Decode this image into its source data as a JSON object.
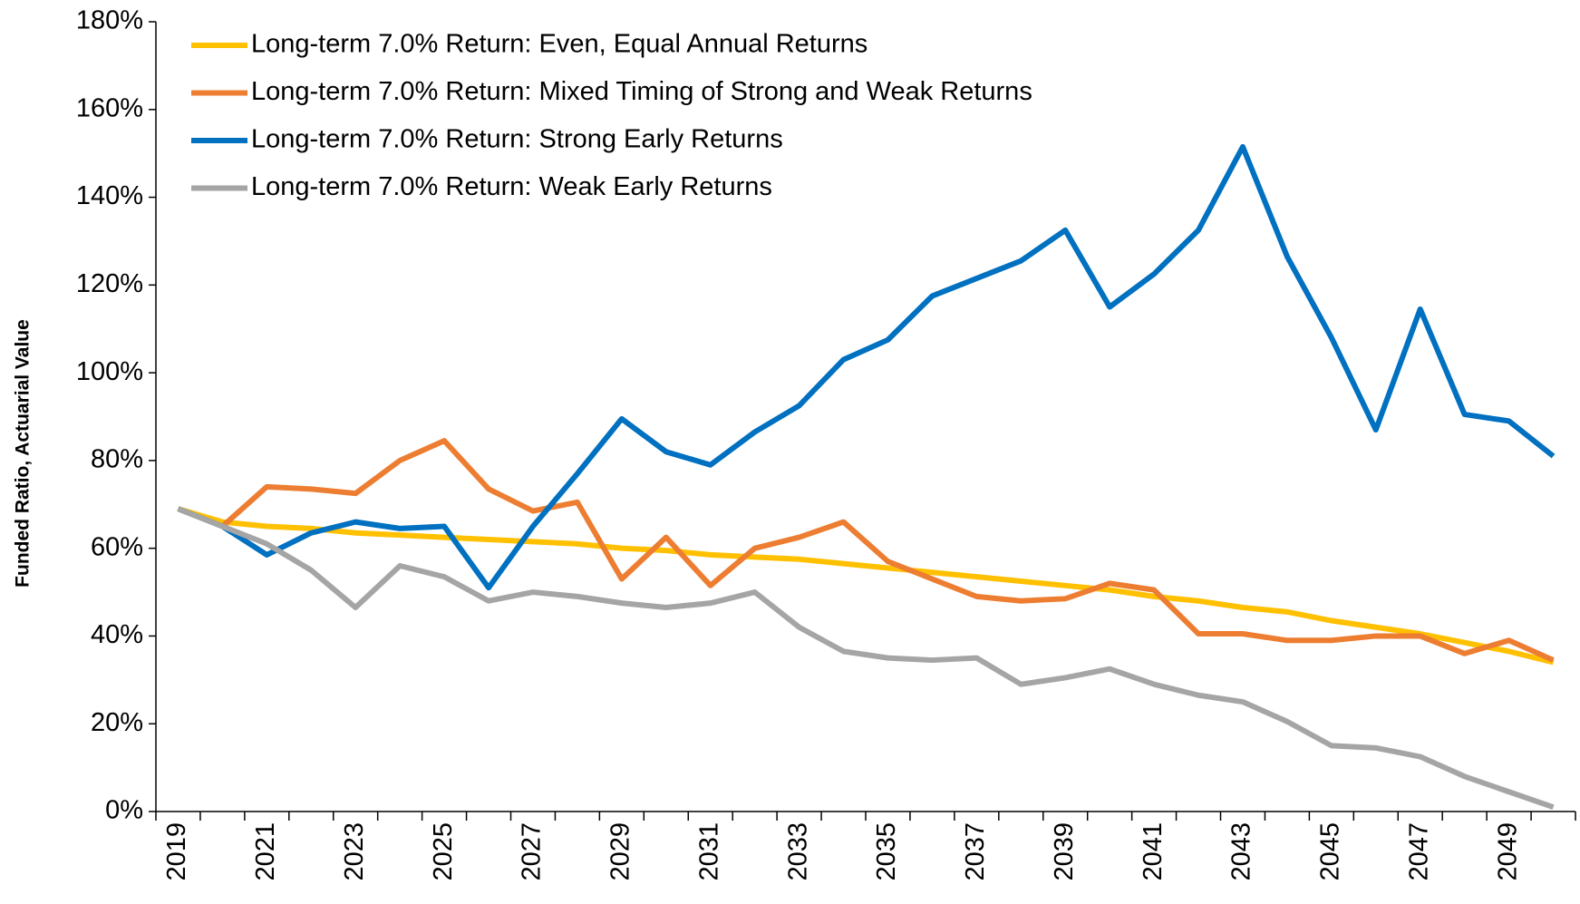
{
  "chart_data": {
    "type": "line",
    "y_label": "Funded Ratio, Actuarial Value",
    "categories": [
      "2019",
      null,
      "2021",
      null,
      "2023",
      null,
      "2025",
      null,
      "2027",
      null,
      "2029",
      null,
      "2031",
      null,
      "2033",
      null,
      "2035",
      null,
      "2037",
      null,
      "2039",
      null,
      "2041",
      null,
      "2043",
      null,
      "2045",
      null,
      "2047",
      null,
      "2049",
      null
    ],
    "series": [
      {
        "name": "Long-term 7.0% Return: Even, Equal Annual Returns",
        "color": "#FFC000",
        "values": [
          69,
          66,
          65,
          64.5,
          63.5,
          63,
          62.5,
          62,
          61.5,
          61,
          60,
          59.5,
          58.5,
          58,
          57.5,
          56.5,
          55.5,
          54.5,
          53.5,
          52.5,
          51.5,
          50.5,
          49,
          48,
          46.5,
          45.5,
          43.5,
          42,
          40.5,
          38.5,
          36.5,
          34
        ]
      },
      {
        "name": "Long-term 7.0% Return: Mixed Timing of Strong and Weak Returns",
        "color": "#ED7D31",
        "values": [
          69,
          65,
          74,
          73.5,
          72.5,
          80,
          84.5,
          73.5,
          68.5,
          70.5,
          53,
          62.5,
          51.5,
          60,
          62.5,
          66,
          57,
          53,
          49,
          48,
          48.5,
          52,
          50.5,
          40.5,
          40.5,
          39,
          39,
          40,
          40,
          36,
          39,
          34.5
        ]
      },
      {
        "name": "Long-term 7.0% Return: Strong Early Returns",
        "color": "#0070C0",
        "values": [
          69,
          65,
          58.5,
          63.5,
          66,
          64.5,
          65,
          51,
          65,
          77,
          89.5,
          82,
          79,
          86.5,
          92.5,
          103,
          107.5,
          117.5,
          121.5,
          125.5,
          132.5,
          115,
          122.5,
          132.5,
          151.5,
          126.5,
          108,
          87,
          114.5,
          90.5,
          89,
          81
        ]
      },
      {
        "name": "Long-term 7.0% Return: Weak Early Returns",
        "color": "#A5A5A5",
        "values": [
          69,
          65,
          61,
          55,
          46.5,
          56,
          53.5,
          48,
          50,
          49,
          47.5,
          46.5,
          47.5,
          50,
          42,
          36.5,
          35,
          34.5,
          35,
          29,
          30.5,
          32.5,
          29,
          26.5,
          25,
          20.5,
          15,
          14.5,
          12.5,
          8,
          4.5,
          1
        ]
      }
    ],
    "ylim": [
      0,
      180
    ],
    "yticks": [
      {
        "value": 0,
        "label": "0%"
      },
      {
        "value": 20,
        "label": "20%"
      },
      {
        "value": 40,
        "label": "40%"
      },
      {
        "value": 60,
        "label": "60%"
      },
      {
        "value": 80,
        "label": "80%"
      },
      {
        "value": 100,
        "label": "100%"
      },
      {
        "value": 120,
        "label": "120%"
      },
      {
        "value": 140,
        "label": "140%"
      },
      {
        "value": 160,
        "label": "160%"
      },
      {
        "value": 180,
        "label": "180%"
      }
    ],
    "legend": "upper left",
    "grid": false
  }
}
